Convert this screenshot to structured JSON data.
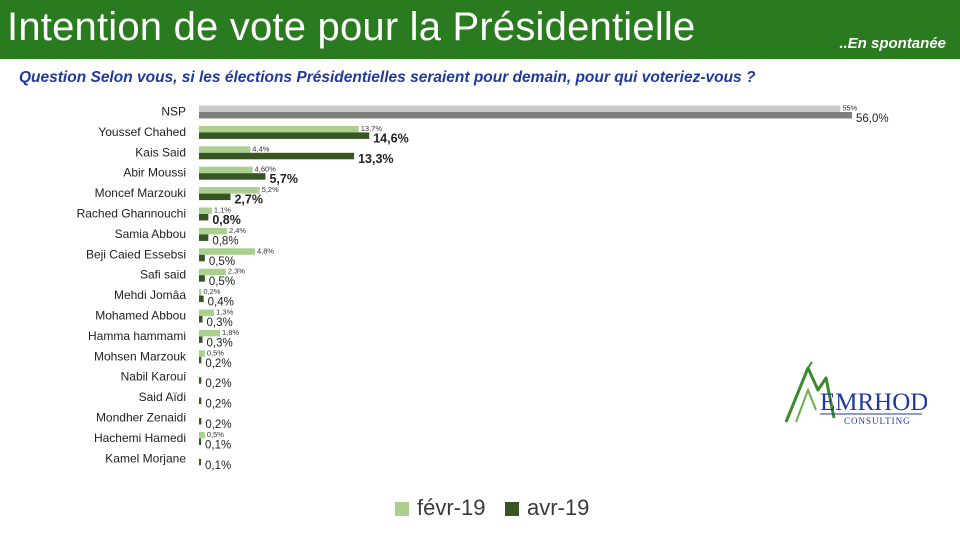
{
  "header": {
    "title": "Intention de vote pour la Présidentielle",
    "subtitle": "..En spontanée"
  },
  "question": "Question Selon vous, si les élections Présidentielles seraient pour demain, pour qui voteriez-vous ?",
  "logo": {
    "name": "EMRHOD",
    "tagline": "CONSULTING"
  },
  "colors": {
    "header": "#2a7a20",
    "feb": "#a9d08e",
    "apr": "#375623",
    "nsp_feb": "#c9c9c9",
    "nsp_apr": "#7f7f7f",
    "question": "#1f3a9e"
  },
  "chart_data": {
    "type": "bar",
    "orientation": "horizontal",
    "categories": [
      "NSP",
      "Youssef Chahed",
      "Kais Said",
      "Abir Moussi",
      "Moncef Marzouki",
      "Rached Ghannouchi",
      "Samia Abbou",
      "Beji Caied Essebsi",
      "Safi said",
      "Mehdi Jomâa",
      "Mohamed Abbou",
      "Hamma hammami",
      "Mohsen Marzouk",
      "Nabil Karoui",
      "Said Aïdi",
      "Mondher Zenaidi",
      "Hachemi Hamedi",
      "Kamel Morjane"
    ],
    "series": [
      {
        "name": "févr-19",
        "values": [
          55,
          13.7,
          4.4,
          4.6,
          5.2,
          1.1,
          2.4,
          4.8,
          2.3,
          0.2,
          1.3,
          1.8,
          0.5,
          null,
          null,
          null,
          0.5,
          null
        ],
        "labels": [
          "55%",
          "13,7%",
          "4,4%",
          "4,60%",
          "5,2%",
          "1,1%",
          "2,4%",
          "4,8%",
          "2,3%",
          "0,2%",
          "1,3%",
          "1,8%",
          "0,5%",
          "",
          "",
          "",
          "0,5%",
          ""
        ]
      },
      {
        "name": "avr-19",
        "values": [
          56.0,
          14.6,
          13.3,
          5.7,
          2.7,
          0.8,
          0.8,
          0.5,
          0.5,
          0.4,
          0.3,
          0.3,
          0.2,
          0.2,
          0.2,
          0.2,
          0.1,
          0.1
        ],
        "labels": [
          "56,0%",
          "14,6%",
          "13,3%",
          "5,7%",
          "2,7%",
          "0,8%",
          "0,8%",
          "0,5%",
          "0,5%",
          "0,4%",
          "0,3%",
          "0,3%",
          "0,2%",
          "0,2%",
          "0,2%",
          "0,2%",
          "0,1%",
          "0,1%"
        ]
      }
    ],
    "bold_labels_count": 5,
    "xlim": [
      0,
      56
    ]
  }
}
